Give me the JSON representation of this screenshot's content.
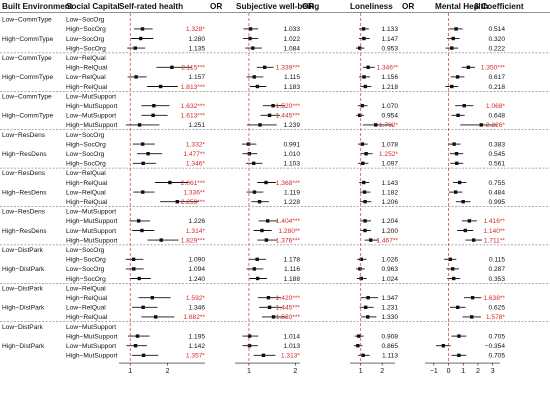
{
  "chart_data": {
    "type": "forest",
    "headers": {
      "built_environment": "Built Environment",
      "social_capital": "Social Capital",
      "panels": [
        "Self-rated health",
        "Subjective well-being",
        "Loneliness",
        "Mental Health"
      ],
      "value_headers": [
        "OR",
        "OR",
        "OR",
        "β Coefficient"
      ]
    },
    "x_ticks": [
      [
        "1",
        "2"
      ],
      [
        "1",
        "2"
      ],
      [
        "1",
        "2"
      ],
      [
        "−1",
        "0",
        "1",
        "2",
        "3"
      ]
    ],
    "x_tick_values": [
      [
        1,
        2
      ],
      [
        1,
        2
      ],
      [
        1,
        2
      ],
      [
        -1,
        0,
        1,
        2,
        3
      ]
    ],
    "x_ranges": [
      [
        0.7,
        3.0
      ],
      [
        0.7,
        2.1
      ],
      [
        0.5,
        2.6
      ],
      [
        -1.6,
        3.5
      ]
    ],
    "reference_values": [
      1,
      1,
      1,
      0
    ],
    "colors": {
      "significant": "#d62728",
      "normal": "#111111",
      "point": "#111111",
      "ref_line": "#e0312b"
    },
    "groups": [
      {
        "built": [
          "Low−CommType",
          "High−CommType"
        ],
        "social": [
          "Low−SocOrg",
          "High−SocOrg"
        ],
        "rows": [
          {
            "be": "Low−CommType",
            "sc": "Low−SocOrg",
            "blank": true
          },
          {
            "be": "",
            "sc": "High−SocOrg",
            "vals": [
              "1.328*",
              "1.033",
              "1.133",
              "0.514"
            ],
            "est": [
              1.328,
              1.033,
              1.133,
              0.514
            ],
            "lo": [
              1.1,
              0.88,
              0.92,
              0.05
            ],
            "hi": [
              1.6,
              1.2,
              1.38,
              0.95
            ]
          },
          {
            "be": "High−CommType",
            "sc": "Low−SocOrg",
            "vals": [
              "1.280",
              "1.022",
              "1.147",
              "0.320"
            ],
            "est": [
              1.28,
              1.022,
              1.147,
              0.32
            ],
            "lo": [
              1.02,
              0.87,
              0.92,
              -0.1
            ],
            "hi": [
              1.62,
              1.2,
              1.42,
              0.75
            ]
          },
          {
            "be": "",
            "sc": "High−SocOrg",
            "vals": [
              "1.135",
              "1.084",
              "0.953",
              "0.222"
            ],
            "est": [
              1.135,
              1.084,
              0.953,
              0.222
            ],
            "lo": [
              0.92,
              0.92,
              0.78,
              -0.2
            ],
            "hi": [
              1.4,
              1.28,
              1.17,
              0.65
            ]
          }
        ]
      },
      {
        "rows": [
          {
            "be": "Low−CommType",
            "sc": "Low−RelQual",
            "blank": true
          },
          {
            "be": "",
            "sc": "High−RelQual",
            "vals": [
              "2.115***",
              "1.339***",
              "1.346**",
              "1.350***"
            ],
            "est": [
              2.115,
              1.339,
              1.346,
              1.35
            ],
            "lo": [
              1.7,
              1.17,
              1.1,
              0.9
            ],
            "hi": [
              2.65,
              1.53,
              1.65,
              1.8
            ]
          },
          {
            "be": "High−CommType",
            "sc": "Low−RelQual",
            "vals": [
              "1.157",
              "1.115",
              "1.156",
              "0.617"
            ],
            "est": [
              1.157,
              1.115,
              1.156,
              0.617
            ],
            "lo": [
              0.93,
              0.95,
              0.93,
              0.15
            ],
            "hi": [
              1.44,
              1.31,
              1.43,
              1.08
            ]
          },
          {
            "be": "",
            "sc": "High−RelQual",
            "vals": [
              "1.813***",
              "1.183",
              "1.218",
              "0.218"
            ],
            "est": [
              1.813,
              1.183,
              1.218,
              0.218
            ],
            "lo": [
              1.45,
              1.02,
              0.99,
              -0.22
            ],
            "hi": [
              2.27,
              1.37,
              1.5,
              0.66
            ]
          }
        ]
      },
      {
        "rows": [
          {
            "be": "Low−CommType",
            "sc": "Low−MutSupport",
            "blank": true
          },
          {
            "be": "",
            "sc": "High−MutSupport",
            "vals": [
              "1.632***",
              "1.520***",
              "1.070",
              "1.068*"
            ],
            "est": [
              1.632,
              1.52,
              1.07,
              1.068
            ],
            "lo": [
              1.3,
              1.3,
              0.87,
              0.45
            ],
            "hi": [
              2.05,
              1.78,
              1.32,
              1.69
            ]
          },
          {
            "be": "High−CommType",
            "sc": "Low−MutSupport",
            "vals": [
              "1.613***",
              "1.445***",
              "0.954",
              "0.648"
            ],
            "est": [
              1.613,
              1.445,
              0.954,
              0.648
            ],
            "lo": [
              1.3,
              1.25,
              0.79,
              0.2
            ],
            "hi": [
              2.0,
              1.67,
              1.15,
              1.1
            ]
          },
          {
            "be": "",
            "sc": "High−MutSupport",
            "vals": [
              "1.251",
              "1.239",
              "1.702*",
              "2.226*"
            ],
            "est": [
              1.251,
              1.239,
              1.702,
              2.226
            ],
            "lo": [
              0.88,
              0.96,
              1.1,
              0.8
            ],
            "hi": [
              1.78,
              1.6,
              2.5,
              3.3
            ]
          }
        ]
      },
      {
        "rows": [
          {
            "be": "Low−ResDens",
            "sc": "Low−SocOrg",
            "blank": true
          },
          {
            "be": "",
            "sc": "High−SocOrg",
            "vals": [
              "1.332*",
              "0.991",
              "1.078",
              "0.383"
            ],
            "est": [
              1.332,
              0.991,
              1.078,
              0.383
            ],
            "lo": [
              1.07,
              0.85,
              0.87,
              -0.05
            ],
            "hi": [
              1.66,
              1.16,
              1.33,
              0.82
            ]
          },
          {
            "be": "High−ResDens",
            "sc": "Low−SocOrg",
            "vals": [
              "1.477**",
              "1.010",
              "1.252*",
              "0.545"
            ],
            "est": [
              1.477,
              1.01,
              1.252,
              0.545
            ],
            "lo": [
              1.18,
              0.86,
              1.01,
              0.1
            ],
            "hi": [
              1.85,
              1.18,
              1.55,
              0.99
            ]
          },
          {
            "be": "",
            "sc": "High−SocOrg",
            "vals": [
              "1.346*",
              "1.103",
              "1.097",
              "0.561"
            ],
            "est": [
              1.346,
              1.103,
              1.097,
              0.561
            ],
            "lo": [
              1.07,
              0.94,
              0.88,
              0.12
            ],
            "hi": [
              1.69,
              1.29,
              1.36,
              1.0
            ]
          }
        ]
      },
      {
        "rows": [
          {
            "be": "Low−ResDens",
            "sc": "Low−RelQual",
            "blank": true
          },
          {
            "be": "",
            "sc": "High−RelQual",
            "vals": [
              "2.061***",
              "1.368***",
              "1.143",
              "0.755"
            ],
            "est": [
              2.061,
              1.368,
              1.143,
              0.755
            ],
            "lo": [
              1.66,
              1.18,
              0.93,
              0.3
            ],
            "hi": [
              2.56,
              1.58,
              1.4,
              1.21
            ]
          },
          {
            "be": "High−ResDens",
            "sc": "Low−RelQual",
            "vals": [
              "1.336**",
              "1.119",
              "1.182",
              "0.484"
            ],
            "est": [
              1.336,
              1.119,
              1.182,
              0.484
            ],
            "lo": [
              1.08,
              0.95,
              0.96,
              0.03
            ],
            "hi": [
              1.65,
              1.31,
              1.45,
              0.94
            ]
          },
          {
            "be": "",
            "sc": "High−RelQual",
            "vals": [
              "2.259***",
              "1.228",
              "1.206",
              "0.995"
            ],
            "est": [
              2.259,
              1.228,
              1.206,
              0.995
            ],
            "lo": [
              1.8,
              1.05,
              0.97,
              0.5
            ],
            "hi": [
              2.83,
              1.43,
              1.5,
              1.49
            ]
          }
        ]
      },
      {
        "rows": [
          {
            "be": "Low−ResDens",
            "sc": "Low−MutSupport",
            "blank": true
          },
          {
            "be": "",
            "sc": "High−MutSupport",
            "vals": [
              "1.226",
              "1.404***",
              "1.204",
              "1.416**"
            ],
            "est": [
              1.226,
              1.404,
              1.204,
              1.416
            ],
            "lo": [
              0.98,
              1.21,
              0.98,
              0.9
            ],
            "hi": [
              1.53,
              1.63,
              1.48,
              1.93
            ]
          },
          {
            "be": "High−ResDens",
            "sc": "Low−MutSupport",
            "vals": [
              "1.314*",
              "1.280**",
              "1.200",
              "1.140**"
            ],
            "est": [
              1.314,
              1.28,
              1.2,
              1.14
            ],
            "lo": [
              1.05,
              1.1,
              0.97,
              0.6
            ],
            "hi": [
              1.64,
              1.49,
              1.48,
              1.68
            ]
          },
          {
            "be": "",
            "sc": "High−MutSupport",
            "vals": [
              "1.829***",
              "1.376***",
              "1.467**",
              "1.711**"
            ],
            "est": [
              1.829,
              1.376,
              1.467,
              1.711
            ],
            "lo": [
              1.46,
              1.18,
              1.18,
              1.15
            ],
            "hi": [
              2.29,
              1.6,
              1.83,
              2.27
            ]
          }
        ]
      },
      {
        "rows": [
          {
            "be": "Low−DistPark",
            "sc": "Low−SocOrg",
            "blank": true
          },
          {
            "be": "",
            "sc": "High−SocOrg",
            "vals": [
              "1.090",
              "1.178",
              "1.026",
              "0.115"
            ],
            "est": [
              1.09,
              1.178,
              1.026,
              0.115
            ],
            "lo": [
              0.88,
              1.01,
              0.83,
              -0.3
            ],
            "hi": [
              1.35,
              1.37,
              1.27,
              0.53
            ]
          },
          {
            "be": "High−DistPark",
            "sc": "Low−SocOrg",
            "vals": [
              "1.094",
              "1.116",
              "0.963",
              "0.287"
            ],
            "est": [
              1.094,
              1.116,
              0.963,
              0.287
            ],
            "lo": [
              0.88,
              0.95,
              0.78,
              -0.14
            ],
            "hi": [
              1.36,
              1.31,
              1.19,
              0.71
            ]
          },
          {
            "be": "",
            "sc": "High−SocOrg",
            "vals": [
              "1.240",
              "1.188",
              "1.024",
              "0.353"
            ],
            "est": [
              1.24,
              1.188,
              1.024,
              0.353
            ],
            "lo": [
              0.99,
              1.01,
              0.82,
              -0.09
            ],
            "hi": [
              1.55,
              1.39,
              1.28,
              0.8
            ]
          }
        ]
      },
      {
        "rows": [
          {
            "be": "Low−DistPark",
            "sc": "Low−RelQual",
            "blank": true
          },
          {
            "be": "",
            "sc": "High−RelQual",
            "vals": [
              "1.592*",
              "1.420***",
              "1.347",
              "1.638**"
            ],
            "est": [
              1.592,
              1.42,
              1.347,
              1.638
            ],
            "lo": [
              1.22,
              1.19,
              1.0,
              1.05
            ],
            "hi": [
              2.08,
              1.69,
              1.81,
              2.23
            ]
          },
          {
            "be": "High−DistPark",
            "sc": "Low−RelQual",
            "vals": [
              "1.346",
              "1.445***",
              "1.231",
              "0.625"
            ],
            "est": [
              1.346,
              1.445,
              1.231,
              0.625
            ],
            "lo": [
              1.05,
              1.22,
              0.95,
              0.1
            ],
            "hi": [
              1.73,
              1.71,
              1.6,
              1.15
            ]
          },
          {
            "be": "",
            "sc": "High−RelQual",
            "vals": [
              "1.682**",
              "1.530***",
              "1.330",
              "1.578*"
            ],
            "est": [
              1.682,
              1.53,
              1.33,
              1.578
            ],
            "lo": [
              1.3,
              1.28,
              1.02,
              0.95
            ],
            "hi": [
              2.18,
              1.82,
              1.73,
              2.2
            ]
          }
        ]
      },
      {
        "rows": [
          {
            "be": "Low−DistPark",
            "sc": "Low−MutSupport",
            "blank": true
          },
          {
            "be": "",
            "sc": "High−MutSupport",
            "vals": [
              "1.195",
              "1.014",
              "0.908",
              "0.705"
            ],
            "est": [
              1.195,
              1.014,
              0.908,
              0.705
            ],
            "lo": [
              0.94,
              0.86,
              0.72,
              0.2
            ],
            "hi": [
              1.52,
              1.2,
              1.14,
              1.21
            ]
          },
          {
            "be": "High−DistPark",
            "sc": "Low−MutSupport",
            "vals": [
              "1.142",
              "1.013",
              "0.865",
              "−0.354"
            ],
            "est": [
              1.142,
              1.013,
              0.865,
              -0.354
            ],
            "lo": [
              0.9,
              0.86,
              0.69,
              -0.85
            ],
            "hi": [
              1.45,
              1.19,
              1.08,
              0.14
            ]
          },
          {
            "be": "",
            "sc": "High−MutSupport",
            "vals": [
              "1.357*",
              "1.313*",
              "1.113",
              "0.705"
            ],
            "est": [
              1.357,
              1.313,
              1.113,
              0.705
            ],
            "lo": [
              1.05,
              1.1,
              0.88,
              0.2
            ],
            "hi": [
              1.75,
              1.57,
              1.41,
              1.21
            ]
          }
        ]
      }
    ]
  }
}
